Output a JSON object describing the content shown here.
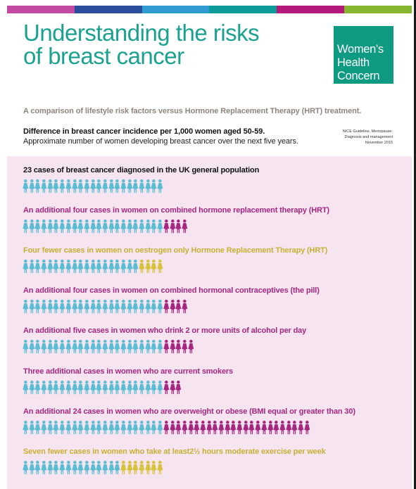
{
  "color_bar": [
    "#c24aa2",
    "#2a4d9c",
    "#2f9bcf",
    "#0c9a9a",
    "#b5187a",
    "#86b62d"
  ],
  "header": {
    "title_line1": "Understanding the risks",
    "title_line2": "of breast cancer",
    "title_color": "#1aa190"
  },
  "logo": {
    "line1": "Women's",
    "line2": "Health",
    "line3": "Concern",
    "color": "#0f9a82"
  },
  "subtitle": "A comparison of lifestyle risk factors versus Hormone Replacement Therapy (HRT) treatment.",
  "difference": {
    "title": "Difference in breast cancer incidence per 1,000 women aged 50-59.",
    "subtitle": "Approximate number of women developing breast cancer over the next five years."
  },
  "source_note": {
    "line1": "NICE Guideline, Menopause:",
    "line2": "Diagnosis and management",
    "line3": "November 2015"
  },
  "colors": {
    "base": "#5bbdd4",
    "additional": "#a6277f",
    "fewer": "#d7c23a",
    "panel": "#f6e5f1"
  },
  "rows": [
    {
      "text": "23 cases of breast cancer diagnosed in the UK general population",
      "text_color": "#111111",
      "base": 23,
      "additional": 0,
      "fewer": 0
    },
    {
      "text": "An additional four cases in women on combined hormone replacement therapy (HRT)",
      "text_color": "#a6277f",
      "base": 23,
      "additional": 4,
      "fewer": 0
    },
    {
      "text": "Four fewer  cases in women on oestrogen only Hormone Replacement Therapy (HRT)",
      "text_color": "#c7b032",
      "base": 19,
      "additional": 0,
      "fewer": 4
    },
    {
      "text": "An additional four cases in women on combined hormonal contraceptives (the pill)",
      "text_color": "#a6277f",
      "base": 23,
      "additional": 4,
      "fewer": 0
    },
    {
      "text": "An additional five cases in women who drink 2 or more units of alcohol per day",
      "text_color": "#a6277f",
      "base": 23,
      "additional": 5,
      "fewer": 0
    },
    {
      "text": "Three additional cases in women who are current smokers",
      "text_color": "#a6277f",
      "base": 23,
      "additional": 3,
      "fewer": 0
    },
    {
      "text": "An additional 24 cases in women who are overweight or obese (BMI equal or greater than 30)",
      "text_color": "#a6277f",
      "base": 23,
      "additional": 24,
      "fewer": 0
    },
    {
      "text": "Seven fewer cases in women who take at least2½ hours moderate exercise per week",
      "text_color": "#c7b032",
      "base": 16,
      "additional": 0,
      "fewer": 7
    }
  ]
}
